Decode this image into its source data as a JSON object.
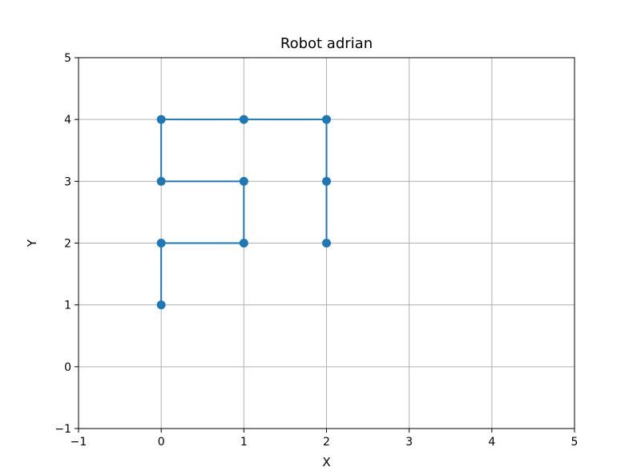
{
  "chart_data": {
    "type": "line",
    "title": "Robot adrian",
    "xlabel": "X",
    "ylabel": "Y",
    "xlim": [
      -1,
      5
    ],
    "ylim": [
      -1,
      5
    ],
    "xticks": [
      -1,
      0,
      1,
      2,
      3,
      4,
      5
    ],
    "yticks": [
      -1,
      0,
      1,
      2,
      3,
      4,
      5
    ],
    "xtick_labels": [
      "−1",
      "0",
      "1",
      "2",
      "3",
      "4",
      "5"
    ],
    "ytick_labels": [
      "−1",
      "0",
      "1",
      "2",
      "3",
      "4",
      "5"
    ],
    "grid": true,
    "legend": "none",
    "color": "#1f77b4",
    "series": [
      {
        "x": [
          0,
          0,
          1,
          1,
          0,
          0,
          1,
          2,
          2,
          2
        ],
        "y": [
          1,
          2,
          2,
          3,
          3,
          4,
          4,
          4,
          3,
          2
        ]
      }
    ]
  }
}
